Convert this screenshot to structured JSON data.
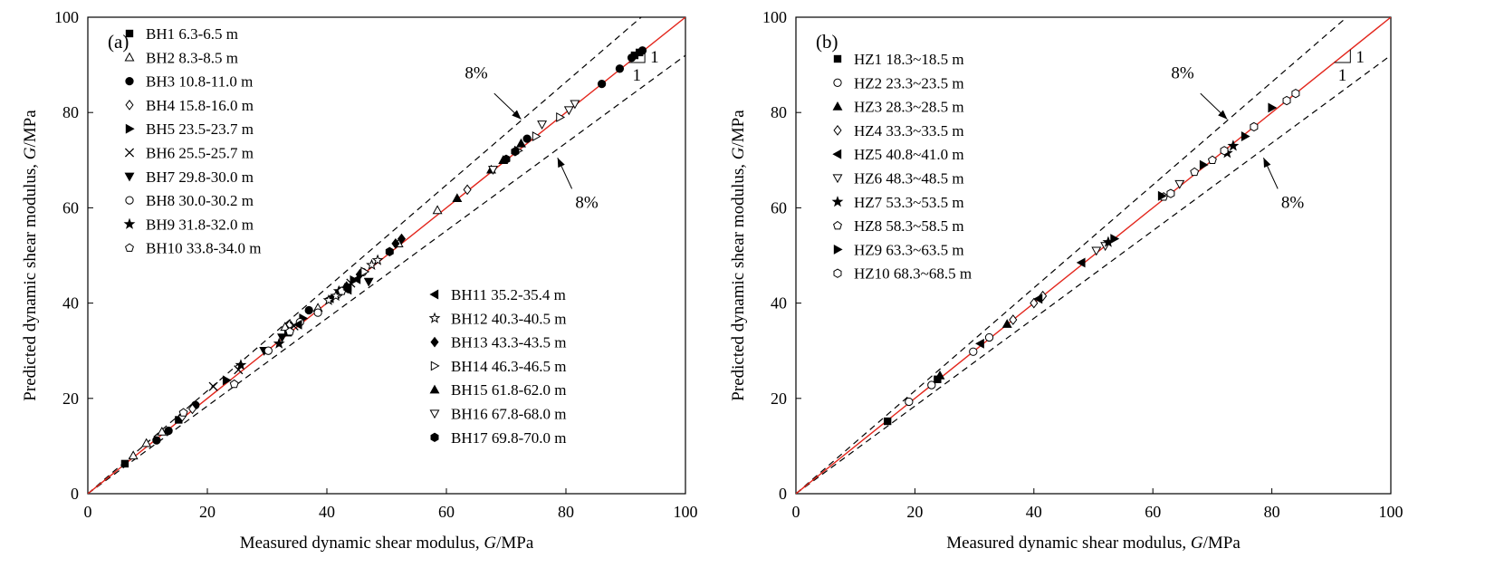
{
  "chart_data": [
    {
      "type": "scatter",
      "panel_label": "(a)",
      "xlabel_prefix": "Measured dynamic shear modulus, ",
      "ylabel_prefix": "Predicted  dynamic shear modulus, ",
      "axis_var": "G",
      "axis_unit": "/MPa",
      "xlim": [
        0,
        100
      ],
      "ylim": [
        0,
        100
      ],
      "xticks": [
        "0",
        "20",
        "40",
        "60",
        "80",
        "100"
      ],
      "yticks": [
        "0",
        "20",
        "40",
        "60",
        "80",
        "100"
      ],
      "reference_line": {
        "slope": 1,
        "color": "#e3261c"
      },
      "bounds": {
        "upper_slope": 1.08,
        "lower_slope": 0.92,
        "style": "dashed"
      },
      "annotations": [
        {
          "text": "8%",
          "target": "upper"
        },
        {
          "text": "8%",
          "target": "lower"
        }
      ],
      "slope_triangle": {
        "rise": "1",
        "run": "1"
      },
      "legend_groups": [
        [
          "BH1",
          "BH2",
          "BH3",
          "BH4",
          "BH5",
          "BH6",
          "BH7",
          "BH8",
          "BH9",
          "BH10"
        ],
        [
          "BH11",
          "BH12",
          "BH13",
          "BH14",
          "BH15",
          "BH16",
          "BH17"
        ]
      ],
      "series": [
        {
          "name": "BH1",
          "depth": "6.3-6.5 m",
          "marker": "square",
          "filled": true,
          "points": [
            [
              6.2,
              6.3
            ],
            [
              15.2,
              15.5
            ],
            [
              33.5,
              33.8
            ],
            [
              43.5,
              43.3
            ],
            [
              91.5,
              92.0
            ],
            [
              92.3,
              92.6
            ]
          ]
        },
        {
          "name": "BH2",
          "depth": "8.3-8.5 m",
          "marker": "triangle",
          "filled": false,
          "points": [
            [
              7.6,
              8.0
            ],
            [
              9.8,
              10.6
            ],
            [
              12.4,
              13.0
            ],
            [
              33.0,
              35.0
            ],
            [
              38.5,
              39.0
            ],
            [
              52.0,
              52.5
            ],
            [
              58.5,
              59.5
            ]
          ]
        },
        {
          "name": "BH3",
          "depth": "10.8-11.0 m",
          "marker": "circle",
          "filled": true,
          "points": [
            [
              11.5,
              11.2
            ],
            [
              13.5,
              13.2
            ],
            [
              18.0,
              18.6
            ],
            [
              37.0,
              38.5
            ],
            [
              73.5,
              74.5
            ],
            [
              86.0,
              86.0
            ],
            [
              89.0,
              89.2
            ],
            [
              91.0,
              91.5
            ],
            [
              92.8,
              93.0
            ]
          ]
        },
        {
          "name": "BH4",
          "depth": "15.8-16.0 m",
          "marker": "diamond",
          "filled": false,
          "points": [
            [
              15.8,
              16.2
            ],
            [
              17.5,
              17.8
            ],
            [
              33.8,
              35.5
            ],
            [
              63.5,
              63.8
            ],
            [
              42.0,
              42.0
            ]
          ]
        },
        {
          "name": "BH5",
          "depth": "23.5-23.7 m",
          "marker": "tri-right",
          "filled": true,
          "points": [
            [
              23.2,
              23.8
            ],
            [
              36.0,
              36.8
            ],
            [
              44.5,
              44.8
            ]
          ]
        },
        {
          "name": "BH6",
          "depth": "25.5-25.7 m",
          "marker": "cross",
          "filled": false,
          "points": [
            [
              21.0,
              22.5
            ],
            [
              25.2,
              26.0
            ],
            [
              34.5,
              35.2
            ],
            [
              44.0,
              44.2
            ]
          ]
        },
        {
          "name": "BH7",
          "depth": "29.8-30.0 m",
          "marker": "tri-down",
          "filled": true,
          "points": [
            [
              29.5,
              30.0
            ],
            [
              32.5,
              32.8
            ],
            [
              47.0,
              44.5
            ]
          ]
        },
        {
          "name": "BH8",
          "depth": "30.0-30.2 m",
          "marker": "circle",
          "filled": false,
          "points": [
            [
              30.2,
              30.0
            ],
            [
              38.5,
              38.0
            ],
            [
              35.5,
              36.0
            ],
            [
              46.0,
              46.5
            ]
          ]
        },
        {
          "name": "BH9",
          "depth": "31.8-32.0 m",
          "marker": "star",
          "filled": true,
          "points": [
            [
              25.6,
              27.0
            ],
            [
              32.0,
              31.5
            ],
            [
              42.0,
              42.5
            ],
            [
              43.0,
              43.0
            ]
          ]
        },
        {
          "name": "BH10",
          "depth": "33.8-34.0 m",
          "marker": "pentagon",
          "filled": false,
          "points": [
            [
              16.0,
              17.0
            ],
            [
              33.8,
              34.0
            ],
            [
              42.5,
              42.5
            ],
            [
              24.5,
              23.0
            ]
          ]
        },
        {
          "name": "BH11",
          "depth": "35.2-35.4 m",
          "marker": "tri-left",
          "filled": true,
          "points": [
            [
              35.2,
              35.5
            ],
            [
              40.5,
              41.0
            ],
            [
              43.5,
              42.8
            ],
            [
              45.0,
              45.0
            ]
          ]
        },
        {
          "name": "BH12",
          "depth": "40.3-40.5 m",
          "marker": "star",
          "filled": false,
          "points": [
            [
              40.3,
              40.6
            ],
            [
              41.5,
              41.5
            ],
            [
              47.5,
              48.0
            ],
            [
              48.5,
              49.0
            ]
          ]
        },
        {
          "name": "BH13",
          "depth": "43.3-43.5 m",
          "marker": "diamond",
          "filled": true,
          "points": [
            [
              43.3,
              43.5
            ],
            [
              45.5,
              46.0
            ],
            [
              51.5,
              52.5
            ],
            [
              52.5,
              53.5
            ]
          ]
        },
        {
          "name": "BH14",
          "depth": "46.3-46.5 m",
          "marker": "tri-right",
          "filled": false,
          "points": [
            [
              46.3,
              46.6
            ],
            [
              72.0,
              72.0
            ],
            [
              75.0,
              75.0
            ],
            [
              79.0,
              79.0
            ]
          ]
        },
        {
          "name": "BH15",
          "depth": "61.8-62.0 m",
          "marker": "triangle",
          "filled": true,
          "points": [
            [
              61.8,
              62.0
            ],
            [
              67.5,
              68.0
            ],
            [
              69.5,
              70.0
            ],
            [
              72.5,
              73.5
            ]
          ]
        },
        {
          "name": "BH16",
          "depth": "67.8-68.0 m",
          "marker": "tri-down",
          "filled": false,
          "points": [
            [
              67.8,
              68.0
            ],
            [
              76.0,
              77.5
            ],
            [
              80.5,
              80.5
            ],
            [
              81.5,
              81.8
            ]
          ]
        },
        {
          "name": "BH17",
          "depth": "69.8-70.0 m",
          "marker": "hexagon",
          "filled": true,
          "points": [
            [
              50.5,
              50.8
            ],
            [
              70.0,
              70.2
            ],
            [
              71.5,
              71.8
            ]
          ]
        }
      ]
    },
    {
      "type": "scatter",
      "panel_label": "(b)",
      "xlabel_prefix": "Measured dynamic shear modulus, ",
      "ylabel_prefix": "Predicted  dynamic shear modulus, ",
      "axis_var": "G",
      "axis_unit": "/MPa",
      "xlim": [
        0,
        100
      ],
      "ylim": [
        0,
        100
      ],
      "xticks": [
        "0",
        "20",
        "40",
        "60",
        "80",
        "100"
      ],
      "yticks": [
        "0",
        "20",
        "40",
        "60",
        "80",
        "100"
      ],
      "reference_line": {
        "slope": 1,
        "color": "#e3261c"
      },
      "bounds": {
        "upper_slope": 1.08,
        "lower_slope": 0.92,
        "style": "dashed"
      },
      "annotations": [
        {
          "text": "8%",
          "target": "upper"
        },
        {
          "text": "8%",
          "target": "lower"
        }
      ],
      "slope_triangle": {
        "rise": "1",
        "run": "1"
      },
      "legend_groups": [
        [
          "HZ1",
          "HZ2",
          "HZ3",
          "HZ4",
          "HZ5",
          "HZ6",
          "HZ7",
          "HZ8",
          "HZ9",
          "HZ10"
        ]
      ],
      "series": [
        {
          "name": "HZ1",
          "depth": "18.3~18.5 m",
          "marker": "square",
          "filled": true,
          "points": [
            [
              15.4,
              15.2
            ],
            [
              23.8,
              24.0
            ]
          ]
        },
        {
          "name": "HZ2",
          "depth": "23.3~23.5 m",
          "marker": "circle",
          "filled": false,
          "points": [
            [
              19.0,
              19.3
            ],
            [
              22.8,
              22.8
            ],
            [
              29.8,
              29.8
            ],
            [
              32.5,
              32.8
            ]
          ]
        },
        {
          "name": "HZ3",
          "depth": "28.3~28.5 m",
          "marker": "triangle",
          "filled": true,
          "points": [
            [
              24.2,
              24.8
            ],
            [
              35.5,
              35.6
            ]
          ]
        },
        {
          "name": "HZ4",
          "depth": "33.3~33.5 m",
          "marker": "diamond",
          "filled": false,
          "points": [
            [
              36.5,
              36.5
            ],
            [
              40.0,
              40.0
            ],
            [
              41.5,
              41.5
            ]
          ]
        },
        {
          "name": "HZ5",
          "depth": "40.8~41.0 m",
          "marker": "tri-left",
          "filled": true,
          "points": [
            [
              31.0,
              31.5
            ],
            [
              40.8,
              40.9
            ],
            [
              48.0,
              48.5
            ]
          ]
        },
        {
          "name": "HZ6",
          "depth": "48.3~48.5 m",
          "marker": "tri-down",
          "filled": false,
          "points": [
            [
              50.5,
              51.0
            ],
            [
              52.0,
              52.0
            ],
            [
              64.5,
              65.0
            ]
          ]
        },
        {
          "name": "HZ7",
          "depth": "53.3~53.5 m",
          "marker": "star",
          "filled": true,
          "points": [
            [
              52.5,
              52.8
            ],
            [
              72.5,
              71.5
            ],
            [
              73.5,
              73.0
            ]
          ]
        },
        {
          "name": "HZ8",
          "depth": "58.3~58.5 m",
          "marker": "pentagon",
          "filled": false,
          "points": [
            [
              61.8,
              62.3
            ],
            [
              67.0,
              67.5
            ],
            [
              70.0,
              70.0
            ]
          ]
        },
        {
          "name": "HZ9",
          "depth": "63.3~63.5 m",
          "marker": "tri-right",
          "filled": true,
          "points": [
            [
              53.5,
              53.5
            ],
            [
              61.5,
              62.5
            ],
            [
              68.5,
              69.0
            ],
            [
              75.5,
              75.0
            ],
            [
              80.0,
              81.0
            ]
          ]
        },
        {
          "name": "HZ10",
          "depth": "68.3~68.5 m",
          "marker": "hexagon",
          "filled": false,
          "points": [
            [
              63.0,
              63.0
            ],
            [
              72.0,
              72.0
            ],
            [
              77.0,
              77.0
            ],
            [
              82.5,
              82.5
            ],
            [
              84.0,
              84.0
            ]
          ]
        }
      ]
    }
  ]
}
